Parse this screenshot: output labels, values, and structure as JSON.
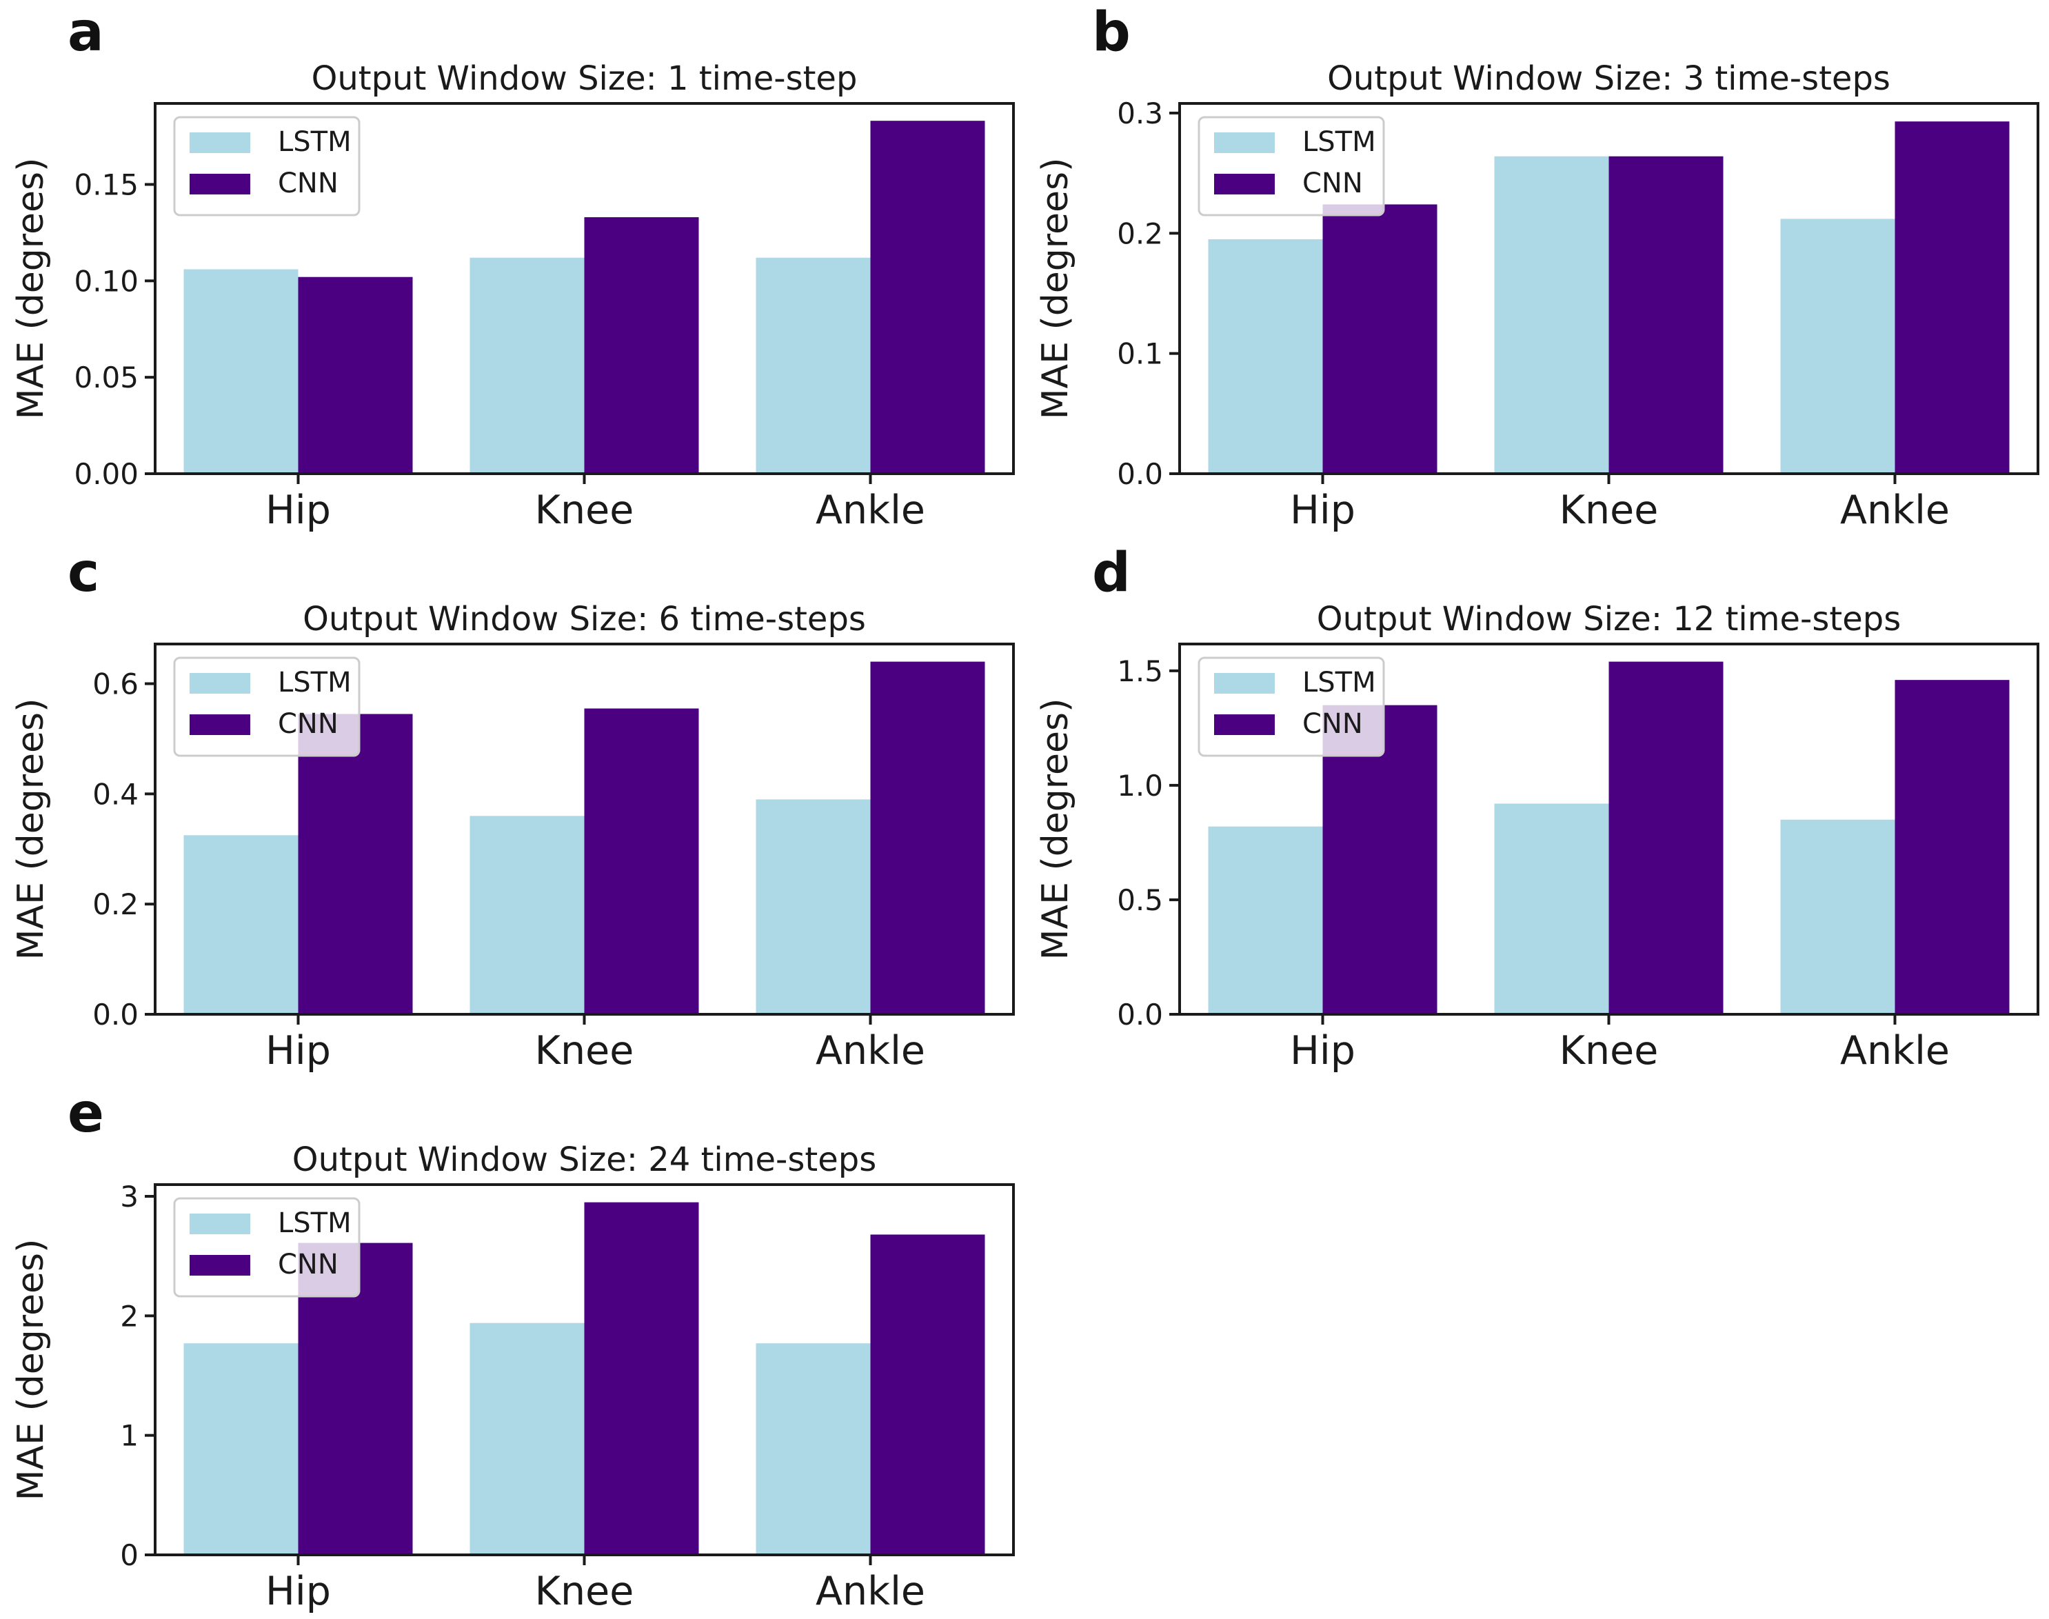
{
  "figure": {
    "background_color": "#ffffff",
    "text_color": "#1a1a1a",
    "spine_color": "#1a1a1a",
    "series_colors": [
      "#ADD8E6",
      "#4B0082"
    ],
    "legend_border_color": "#cccccc",
    "legend_fill": "rgba(255,255,255,0.8)",
    "ylabel": "MAE (degrees)",
    "categories": [
      "Hip",
      "Knee",
      "Ankle"
    ],
    "legend_labels": [
      "LSTM",
      "CNN"
    ]
  },
  "chart_data": [
    {
      "type": "bar",
      "panel": "a",
      "title": "Output Window Size: 1 time-step",
      "xlabel": "",
      "ylabel": "MAE (degrees)",
      "categories": [
        "Hip",
        "Knee",
        "Ankle"
      ],
      "series": [
        {
          "name": "LSTM",
          "values": [
            0.106,
            0.112,
            0.112
          ]
        },
        {
          "name": "CNN",
          "values": [
            0.102,
            0.133,
            0.183
          ]
        }
      ],
      "ylim": [
        0,
        0.192
      ],
      "yticks": [
        0,
        0.05,
        0.1,
        0.15
      ],
      "ytick_labels": [
        "0.00",
        "0.05",
        "0.10",
        "0.15"
      ],
      "legend_position": "upper left",
      "grid": false
    },
    {
      "type": "bar",
      "panel": "b",
      "title": "Output Window Size: 3 time-steps",
      "xlabel": "",
      "ylabel": "MAE (degrees)",
      "categories": [
        "Hip",
        "Knee",
        "Ankle"
      ],
      "series": [
        {
          "name": "LSTM",
          "values": [
            0.195,
            0.264,
            0.212
          ]
        },
        {
          "name": "CNN",
          "values": [
            0.224,
            0.264,
            0.293
          ]
        }
      ],
      "ylim": [
        0,
        0.308
      ],
      "yticks": [
        0,
        0.1,
        0.2,
        0.3
      ],
      "ytick_labels": [
        "0.0",
        "0.1",
        "0.2",
        "0.3"
      ],
      "legend_position": "upper left",
      "grid": false
    },
    {
      "type": "bar",
      "panel": "c",
      "title": "Output Window Size: 6 time-steps",
      "xlabel": "",
      "ylabel": "MAE (degrees)",
      "categories": [
        "Hip",
        "Knee",
        "Ankle"
      ],
      "series": [
        {
          "name": "LSTM",
          "values": [
            0.325,
            0.36,
            0.39
          ]
        },
        {
          "name": "CNN",
          "values": [
            0.545,
            0.555,
            0.64
          ]
        }
      ],
      "ylim": [
        0,
        0.672
      ],
      "yticks": [
        0,
        0.2,
        0.4,
        0.6
      ],
      "ytick_labels": [
        "0.0",
        "0.2",
        "0.4",
        "0.6"
      ],
      "legend_position": "upper left",
      "grid": false
    },
    {
      "type": "bar",
      "panel": "d",
      "title": "Output Window Size: 12 time-steps",
      "xlabel": "",
      "ylabel": "MAE (degrees)",
      "categories": [
        "Hip",
        "Knee",
        "Ankle"
      ],
      "series": [
        {
          "name": "LSTM",
          "values": [
            0.82,
            0.92,
            0.85
          ]
        },
        {
          "name": "CNN",
          "values": [
            1.35,
            1.54,
            1.46
          ]
        }
      ],
      "ylim": [
        0,
        1.617
      ],
      "yticks": [
        0,
        0.5,
        1.0,
        1.5
      ],
      "ytick_labels": [
        "0.0",
        "0.5",
        "1.0",
        "1.5"
      ],
      "legend_position": "upper left",
      "grid": false
    },
    {
      "type": "bar",
      "panel": "e",
      "title": "Output Window Size: 24 time-steps",
      "xlabel": "",
      "ylabel": "MAE (degrees)",
      "categories": [
        "Hip",
        "Knee",
        "Ankle"
      ],
      "series": [
        {
          "name": "LSTM",
          "values": [
            1.77,
            1.94,
            1.77
          ]
        },
        {
          "name": "CNN",
          "values": [
            2.61,
            2.95,
            2.68
          ]
        }
      ],
      "ylim": [
        0,
        3.098
      ],
      "yticks": [
        0,
        1,
        2,
        3
      ],
      "ytick_labels": [
        "0",
        "1",
        "2",
        "3"
      ],
      "legend_position": "upper left",
      "grid": false
    }
  ]
}
